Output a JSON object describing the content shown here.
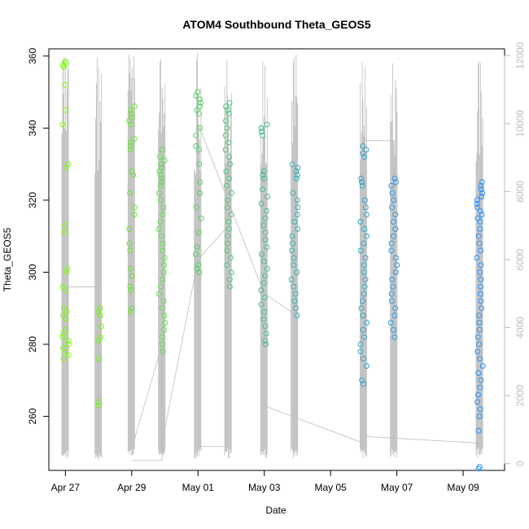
{
  "chart_data": {
    "type": "scatter",
    "title": "ATOM4 Southbound Theta_GEOS5",
    "xlabel": "Date",
    "ylabel": "Theta_GEOS5",
    "x_ticks": [
      "Apr 27",
      "Apr 29",
      "May 01",
      "May 03",
      "May 05",
      "May 07",
      "May 09"
    ],
    "xlim": [
      "2018-04-26T12:00",
      "2018-05-10T06:00"
    ],
    "ylim": [
      245,
      362
    ],
    "y_ticks": [
      260,
      280,
      300,
      320,
      340,
      360
    ],
    "y2lim": [
      -200,
      12200
    ],
    "y2_ticks": [
      0,
      2000,
      4000,
      6000,
      8000,
      10000,
      12000
    ],
    "y2label": "",
    "grid": false,
    "legend": "none",
    "colors": {
      "altitude_line": "#bdbdbd",
      "colormap_start": "#7cfc00",
      "colormap_end": "#1e90ff"
    },
    "flights": [
      {
        "date": "2018-04-27T00:05",
        "theta_values": [
          358.5,
          358,
          357.5,
          357,
          352,
          345,
          341,
          330,
          329,
          313,
          311,
          301,
          300,
          296,
          295,
          290,
          289,
          288,
          287,
          284,
          283,
          282,
          281,
          280,
          279,
          278,
          277,
          276
        ]
      },
      {
        "date": "2018-04-28T00:00",
        "theta_values": [
          290,
          289,
          288,
          285,
          282,
          281,
          276,
          264,
          263
        ]
      },
      {
        "date": "2018-04-29T00:00",
        "theta_values": [
          346,
          345,
          344,
          343,
          342,
          341,
          337,
          336,
          335,
          334,
          328,
          327,
          322,
          318,
          316,
          312,
          308,
          306,
          301,
          299,
          296,
          295,
          290,
          289
        ]
      },
      {
        "date": "2018-04-29T22:00",
        "theta_values": [
          332,
          330,
          328,
          327,
          326,
          325,
          324,
          322,
          320,
          318,
          316,
          314,
          312,
          310,
          308,
          306,
          304,
          302,
          300,
          298,
          296,
          294,
          292,
          290,
          288,
          286,
          284,
          282,
          280,
          278,
          334,
          331,
          329
        ]
      },
      {
        "date": "2018-05-01T00:00",
        "theta_values": [
          350,
          349,
          348,
          347,
          346,
          345,
          344,
          340,
          338,
          335,
          334,
          330,
          325,
          322,
          318,
          315,
          311,
          307,
          305,
          302,
          301,
          300
        ]
      },
      {
        "date": "2018-05-01T22:00",
        "theta_values": [
          347,
          346,
          345,
          344,
          342,
          340,
          338,
          336,
          334,
          332,
          330,
          328,
          326,
          324,
          322,
          320,
          318,
          316,
          314,
          312,
          310,
          308,
          306,
          304,
          302,
          300,
          298,
          296
        ]
      },
      {
        "date": "2018-05-03T00:00",
        "theta_values": [
          341,
          340,
          339,
          338,
          328,
          327,
          326,
          323,
          321,
          319,
          317,
          315,
          313,
          311,
          309,
          307,
          305,
          303,
          301,
          299,
          297,
          295,
          293,
          291,
          289,
          287,
          285,
          283,
          281,
          280
        ]
      },
      {
        "date": "2018-05-03T22:00",
        "theta_values": [
          330,
          329,
          328,
          327,
          326,
          322,
          320,
          318,
          316,
          314,
          312,
          310,
          308,
          306,
          304,
          302,
          300,
          298,
          296,
          294,
          292,
          290,
          288
        ]
      },
      {
        "date": "2018-05-06T00:00",
        "theta_values": [
          335,
          334,
          333,
          332,
          326,
          325,
          324,
          320,
          318,
          316,
          314,
          312,
          310,
          308,
          306,
          304,
          302,
          300,
          298,
          296,
          294,
          292,
          290,
          288,
          286,
          284,
          282,
          280,
          278,
          276,
          274,
          270,
          269
        ]
      },
      {
        "date": "2018-05-06T22:00",
        "theta_values": [
          326,
          325,
          324,
          322,
          320,
          318,
          316,
          314,
          312,
          310,
          308,
          306,
          304,
          302,
          300,
          298,
          296,
          294,
          292,
          290,
          288,
          286,
          284,
          282
        ]
      },
      {
        "date": "2018-05-09T12:00",
        "theta_values": [
          325,
          324,
          323,
          322,
          321,
          320,
          319,
          318,
          317,
          316,
          315,
          314,
          312,
          310,
          308,
          306,
          304,
          302,
          300,
          298,
          296,
          294,
          292,
          290,
          288,
          286,
          284,
          282,
          280,
          278,
          276,
          274,
          272,
          270,
          268,
          266,
          264,
          262,
          260,
          256,
          246,
          245.5
        ]
      }
    ]
  }
}
